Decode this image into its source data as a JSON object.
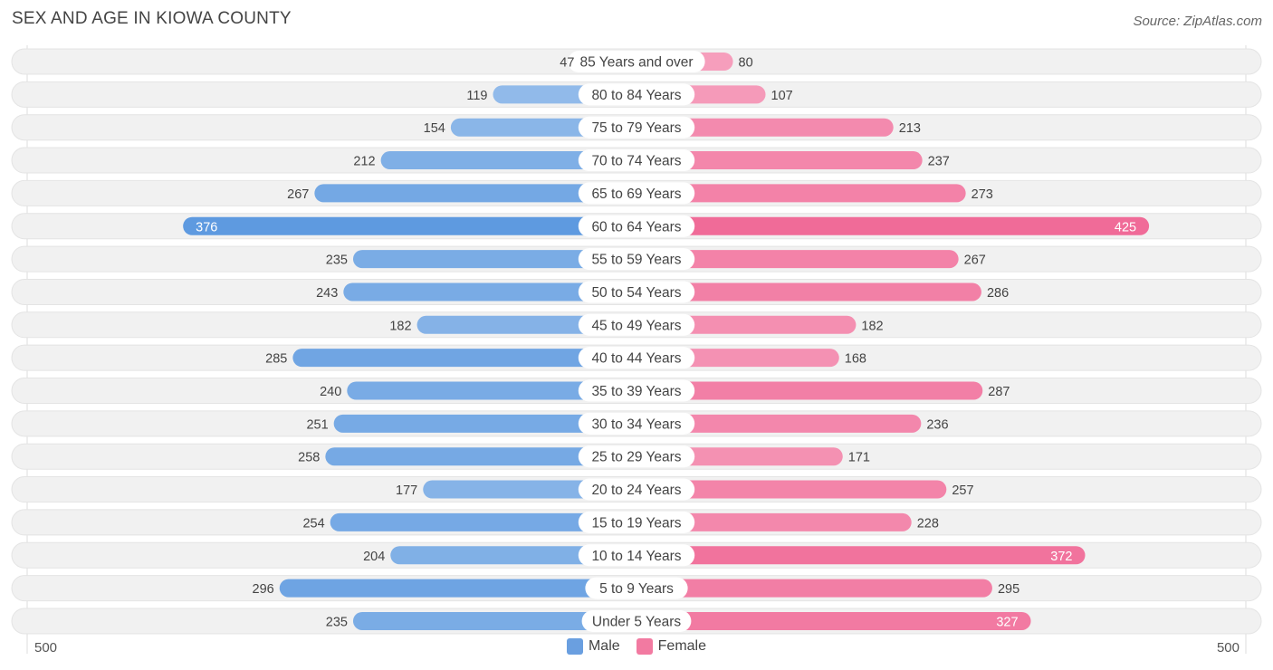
{
  "header": {
    "title": "SEX AND AGE IN KIOWA COUNTY",
    "source": "Source: ZipAtlas.com"
  },
  "colors": {
    "male_strong": "#5e9ae0",
    "male_light": "#a9c9ee",
    "female_strong": "#f06b98",
    "female_light": "#f7aac4",
    "row_bg": "#f1f1f1",
    "label_bg": "#ffffff"
  },
  "chart_data": {
    "type": "bar",
    "orientation": "horizontal-diverging",
    "title": "SEX AND AGE IN KIOWA COUNTY",
    "categories": [
      "85 Years and over",
      "80 to 84 Years",
      "75 to 79 Years",
      "70 to 74 Years",
      "65 to 69 Years",
      "60 to 64 Years",
      "55 to 59 Years",
      "50 to 54 Years",
      "45 to 49 Years",
      "40 to 44 Years",
      "35 to 39 Years",
      "30 to 34 Years",
      "25 to 29 Years",
      "20 to 24 Years",
      "15 to 19 Years",
      "10 to 14 Years",
      "5 to 9 Years",
      "Under 5 Years"
    ],
    "series": [
      {
        "name": "Male",
        "values": [
          47,
          119,
          154,
          212,
          267,
          376,
          235,
          243,
          182,
          285,
          240,
          251,
          258,
          177,
          254,
          204,
          296,
          235
        ]
      },
      {
        "name": "Female",
        "values": [
          80,
          107,
          213,
          237,
          273,
          425,
          267,
          286,
          182,
          168,
          287,
          236,
          171,
          257,
          228,
          372,
          295,
          327
        ]
      }
    ],
    "axis": {
      "left_label": "500",
      "right_label": "500",
      "max": 500
    },
    "legend": [
      {
        "label": "Male",
        "color": "#6a9fe0"
      },
      {
        "label": "Female",
        "color": "#f27aa1"
      }
    ],
    "legend_position": "bottom-center"
  }
}
